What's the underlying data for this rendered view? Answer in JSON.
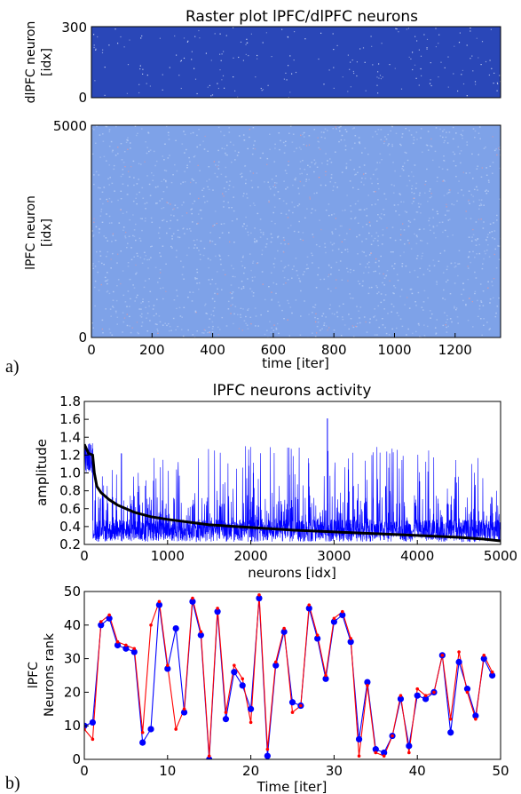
{
  "panel_labels": [
    "a)",
    "b)"
  ],
  "chart_data": [
    {
      "type": "heatmap",
      "title": "Raster plot lPFC/dlPFC neurons",
      "ylabel_lines": [
        "dlPFC neuron",
        "[idx]"
      ],
      "ylim": [
        0,
        300
      ],
      "yticks": [
        "300",
        "0"
      ],
      "colors": {
        "background": "#2a47b8",
        "spikes": "#e8f0ff"
      }
    },
    {
      "type": "heatmap",
      "ylabel_lines": [
        "lPFC neuron",
        "[idx]"
      ],
      "xlabel": "time [iter]",
      "xlim": [
        0,
        1350
      ],
      "ylim": [
        0,
        5000
      ],
      "xticks": [
        "0",
        "200",
        "400",
        "600",
        "800",
        "1000",
        "1200"
      ],
      "yticks": [
        "5000",
        "0"
      ],
      "colors": {
        "background": "#7ea2e8",
        "noise": "#b7cdf5",
        "sparse": "#f09a9a"
      }
    },
    {
      "type": "line",
      "title": "lPFC neurons activity",
      "xlabel": "neurons [idx]",
      "ylabel": "amplitude",
      "xlim": [
        0,
        5000
      ],
      "ylim": [
        0.2,
        1.8
      ],
      "xticks": [
        "0",
        "1000",
        "2000",
        "3000",
        "4000",
        "5000"
      ],
      "yticks": [
        "1.8",
        "1.6",
        "1.4",
        "1.2",
        "1.0",
        "0.8",
        "0.6",
        "0.4",
        "0.2"
      ],
      "series": [
        {
          "color": "#0000ff"
        },
        {
          "color": "#000000",
          "x": [
            0,
            50,
            100,
            120,
            150,
            200,
            300,
            400,
            600,
            800,
            1000,
            1500,
            2000,
            2500,
            3000,
            3500,
            4000,
            4500,
            4800,
            5000
          ],
          "y": [
            1.32,
            1.22,
            1.2,
            1.0,
            0.85,
            0.78,
            0.7,
            0.64,
            0.56,
            0.51,
            0.48,
            0.42,
            0.39,
            0.36,
            0.34,
            0.32,
            0.3,
            0.28,
            0.26,
            0.24
          ]
        }
      ]
    },
    {
      "type": "line",
      "xlabel": "Time [iter]",
      "ylabel_lines": [
        "lPFC",
        "Neurons rank"
      ],
      "xlim": [
        0,
        50
      ],
      "ylim": [
        0,
        50
      ],
      "xticks": [
        "0",
        "10",
        "20",
        "30",
        "40",
        "50"
      ],
      "yticks": [
        "50",
        "40",
        "30",
        "20",
        "10",
        "0"
      ],
      "series": [
        {
          "color": "#0000ff",
          "marker": "circle",
          "x": [
            0,
            1,
            2,
            3,
            4,
            5,
            6,
            7,
            8,
            9,
            10,
            11,
            12,
            13,
            14,
            15,
            16,
            17,
            18,
            19,
            20,
            21,
            22,
            23,
            24,
            25,
            26,
            27,
            28,
            29,
            30,
            31,
            32,
            33,
            34,
            35,
            36,
            37,
            38,
            39,
            40,
            41,
            42,
            43,
            44,
            45,
            46,
            47,
            48,
            49
          ],
          "y": [
            10,
            11,
            40,
            42,
            34,
            33,
            32,
            5,
            9,
            46,
            27,
            39,
            14,
            47,
            37,
            0,
            44,
            12,
            26,
            22,
            15,
            48,
            1,
            28,
            38,
            17,
            16,
            45,
            36,
            24,
            41,
            43,
            35,
            6,
            23,
            3,
            2,
            7,
            18,
            4,
            19,
            18,
            20,
            31,
            8,
            29,
            21,
            13,
            30,
            25
          ]
        },
        {
          "color": "#ff0000",
          "marker": "dot",
          "x": [
            0,
            1,
            2,
            3,
            4,
            5,
            6,
            7,
            8,
            9,
            10,
            11,
            12,
            13,
            14,
            15,
            16,
            17,
            18,
            19,
            20,
            21,
            22,
            23,
            24,
            25,
            26,
            27,
            28,
            29,
            30,
            31,
            32,
            33,
            34,
            35,
            36,
            37,
            38,
            39,
            40,
            41,
            42,
            43,
            44,
            45,
            46,
            47,
            48,
            49
          ],
          "y": [
            9,
            6,
            41,
            43,
            35,
            34,
            33,
            8,
            40,
            47,
            28,
            9,
            15,
            48,
            38,
            1,
            45,
            14,
            28,
            24,
            11,
            49,
            3,
            29,
            39,
            14,
            16,
            46,
            37,
            25,
            42,
            44,
            36,
            1,
            22,
            2,
            1,
            7,
            19,
            2,
            21,
            19,
            20,
            31,
            12,
            32,
            20,
            12,
            31,
            26
          ]
        }
      ]
    }
  ]
}
